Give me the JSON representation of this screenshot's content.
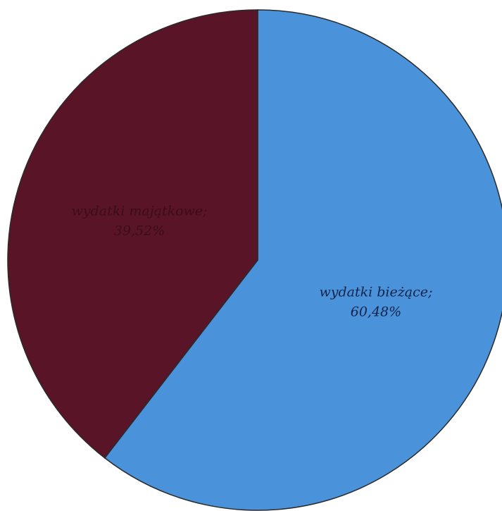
{
  "chart_data": {
    "type": "pie",
    "slices": [
      {
        "label": "wydatki bieżące",
        "value": 60.48,
        "value_text": "60,48%",
        "color": "#4a92da",
        "label_color": "#14234a"
      },
      {
        "label": "wydatki majątkowe",
        "value": 39.52,
        "value_text": "39,52%",
        "color": "#5a1427",
        "label_color": "#3b0d18"
      }
    ],
    "start_angle_deg": 0,
    "direction": "clockwise",
    "legend": "none",
    "data_labels": "inside"
  }
}
